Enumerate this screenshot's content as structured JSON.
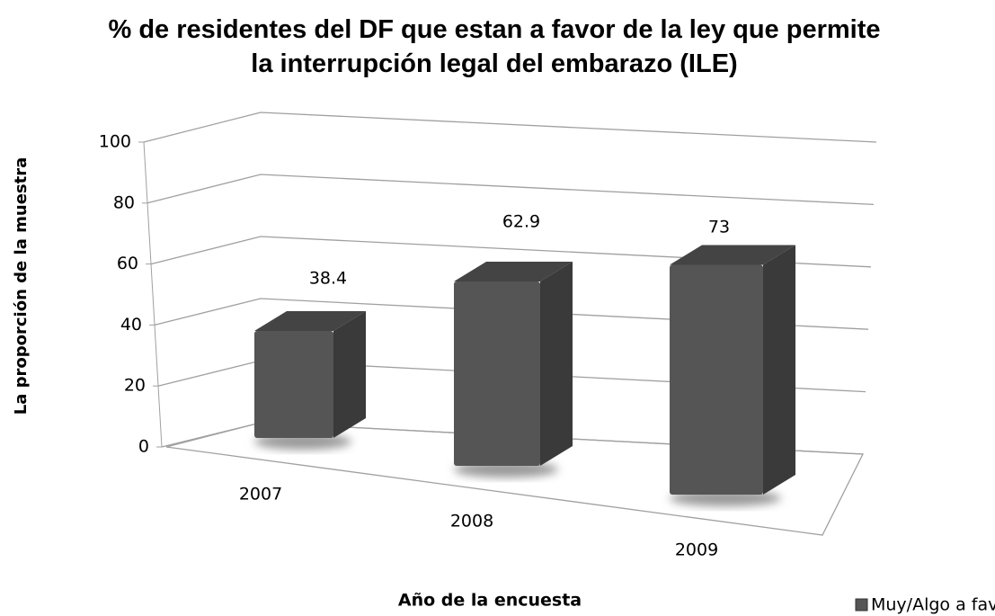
{
  "chart_data": {
    "type": "bar3d",
    "title": "% de residentes del DF que estan a favor de la ley que permite la interrupción legal del embarazo (ILE)",
    "x_label": "Año de la encuesta",
    "y_label": "La proporción de la muestra",
    "categories": [
      "2007",
      "2008",
      "2009"
    ],
    "series": [
      {
        "name": "Muy/Algo a favor",
        "color": "#555555",
        "values": [
          38.4,
          62.9,
          73
        ]
      }
    ],
    "ylim": [
      0,
      100
    ],
    "yticks": [
      0,
      20,
      40,
      60,
      80,
      100
    ],
    "grid": true,
    "legend": "bottom-right"
  }
}
